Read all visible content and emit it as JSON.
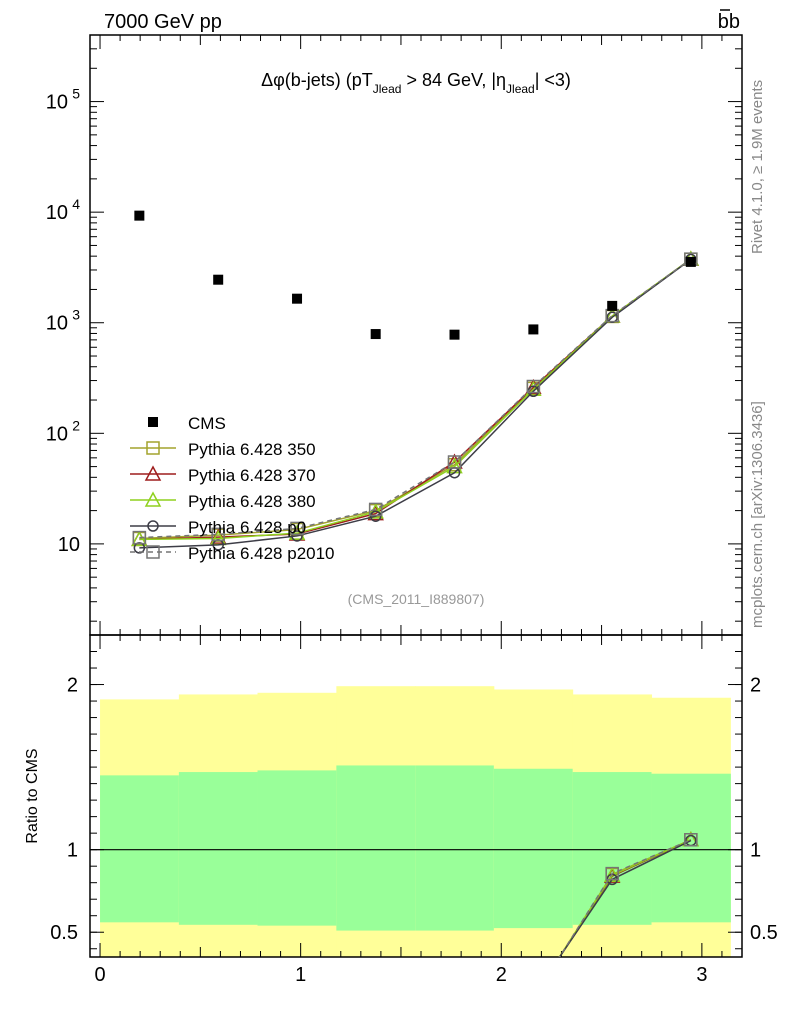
{
  "header": {
    "left_title": "7000 GeV pp",
    "right_title": "bb",
    "side_right_top": "Rivet 4.1.0, ≥ 1.9M events",
    "side_right_bottom": "mcplots.cern.ch [arXiv:1306.3436]"
  },
  "chart_data": [
    {
      "type": "scatter",
      "panel": "main",
      "title_parts": {
        "pre": "Δφ(b-jets) (pT",
        "sub1": "Jlead",
        "mid": " >  84 GeV, |η",
        "sub2": "Jlead",
        "post": "| <3)"
      },
      "analysis_label": "(CMS_2011_I889807)",
      "y_scale": "log",
      "ylim": [
        1.5,
        400000
      ],
      "xlim": [
        -0.05,
        3.2
      ],
      "y_tick_labels": [
        "10",
        "10^2",
        "10^3",
        "10^4",
        "10^5"
      ],
      "x": [
        0.196,
        0.589,
        0.982,
        1.374,
        1.767,
        2.16,
        2.553,
        2.945
      ],
      "series": [
        {
          "name": "CMS",
          "color": "#000000",
          "marker": "filled-square",
          "values": [
            9300,
            2450,
            1650,
            790,
            780,
            870,
            1420,
            3550
          ]
        },
        {
          "name": "Pythia 6.428 350",
          "color": "#a3a32d",
          "marker": "open-square",
          "values": [
            11.2,
            12,
            13.5,
            20,
            52,
            255,
            1140,
            3750
          ]
        },
        {
          "name": "Pythia 6.428 370",
          "color": "#9e1d1d",
          "marker": "open-triangle",
          "values": [
            11,
            11.5,
            12.3,
            18.8,
            55,
            260,
            1150,
            3760
          ]
        },
        {
          "name": "Pythia 6.428 380",
          "color": "#8fd11e",
          "marker": "open-triangle",
          "values": [
            11,
            11.2,
            12.5,
            19.5,
            50,
            250,
            1150,
            3770
          ]
        },
        {
          "name": "Pythia 6.428 p0",
          "color": "#3d3d47",
          "marker": "open-circle",
          "values": [
            9.2,
            9.8,
            11.8,
            17.8,
            44,
            240,
            1120,
            3740
          ]
        },
        {
          "name": "Pythia 6.428 p2010",
          "color": "#757575",
          "marker": "open-square",
          "dashed": true,
          "values": [
            11.4,
            12.2,
            13.8,
            20.5,
            55,
            265,
            1160,
            3760
          ]
        }
      ]
    },
    {
      "type": "line",
      "panel": "ratio",
      "ylabel": "Ratio to CMS",
      "ylim": [
        0.35,
        2.3
      ],
      "y_tick_labels": [
        "0.5",
        "1",
        "2"
      ],
      "x_tick_labels": [
        "0",
        "1",
        "2",
        "3"
      ],
      "bin_edges": [
        0,
        0.393,
        0.785,
        1.178,
        1.571,
        1.963,
        2.356,
        2.749,
        3.142
      ],
      "band_yellow_low": [
        0.33,
        0.33,
        0.33,
        0.33,
        0.33,
        0.33,
        0.33,
        0.33
      ],
      "band_yellow_high": [
        1.91,
        1.94,
        1.95,
        1.99,
        1.99,
        1.97,
        1.94,
        1.92
      ],
      "band_green_low": [
        0.56,
        0.545,
        0.54,
        0.51,
        0.51,
        0.525,
        0.545,
        0.56
      ],
      "band_green_high": [
        1.45,
        1.47,
        1.48,
        1.51,
        1.51,
        1.49,
        1.47,
        1.46
      ],
      "band_yellow_color": "#ffff99",
      "band_green_color": "#99ff99",
      "x": [
        2.28,
        2.553,
        2.945
      ],
      "series": [
        {
          "name": "Pythia 6.428 350",
          "values": [
            0.33,
            0.85,
            1.06
          ]
        },
        {
          "name": "Pythia 6.428 370",
          "values": [
            0.33,
            0.84,
            1.06
          ]
        },
        {
          "name": "Pythia 6.428 380",
          "values": [
            0.33,
            0.845,
            1.06
          ]
        },
        {
          "name": "Pythia 6.428 p0",
          "values": [
            0.33,
            0.82,
            1.055
          ]
        },
        {
          "name": "Pythia 6.428 p2010",
          "values": [
            0.33,
            0.855,
            1.06
          ]
        }
      ]
    }
  ]
}
